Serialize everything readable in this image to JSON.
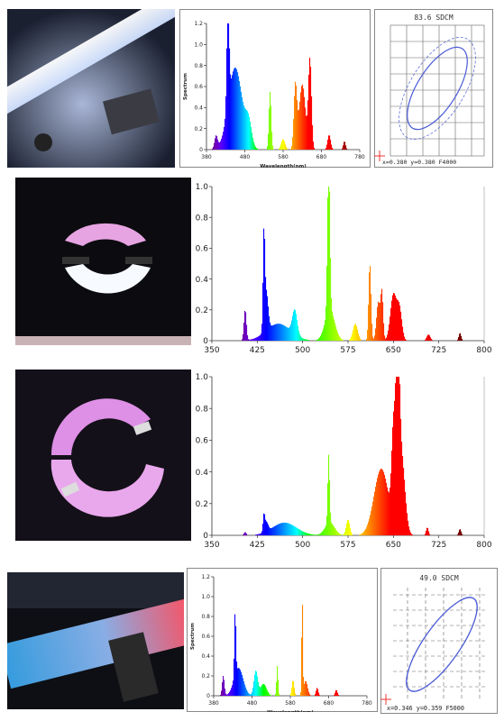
{
  "rows": [
    {
      "photo": {
        "subject": "linear tube lamp",
        "bg": "#1c2233"
      },
      "chart_data": {
        "type": "area",
        "ylabel": "Spectrum",
        "xlabel": "Wavelength(nm)",
        "xlim": [
          380,
          780
        ],
        "ylim": [
          0,
          1.2
        ],
        "x_ticks": [
          380,
          480,
          580,
          680,
          780
        ],
        "x_tick_labels": [
          "380",
          "480",
          "580",
          "680",
          "780"
        ],
        "y_ticks": [
          0,
          0.2,
          0.4,
          0.6,
          0.8,
          1.0,
          1.2
        ],
        "y_tick_labels": [
          "0",
          "0.2",
          "0.4",
          "0.6",
          "0.8",
          "1.0",
          "1.2"
        ],
        "peaks": [
          {
            "x": 405,
            "w": 4,
            "h": 0.12
          },
          {
            "x": 436,
            "w": 3,
            "h": 1.0
          },
          {
            "x": 455,
            "w": 18,
            "h": 0.78
          },
          {
            "x": 490,
            "w": 8,
            "h": 0.22
          },
          {
            "x": 546,
            "w": 3,
            "h": 0.55
          },
          {
            "x": 580,
            "w": 5,
            "h": 0.1
          },
          {
            "x": 612,
            "w": 4,
            "h": 0.6
          },
          {
            "x": 630,
            "w": 8,
            "h": 0.62
          },
          {
            "x": 650,
            "w": 4,
            "h": 0.85
          },
          {
            "x": 700,
            "w": 4,
            "h": 0.14
          },
          {
            "x": 740,
            "w": 3,
            "h": 0.08
          }
        ]
      },
      "cie": {
        "title": "83.6 SDCM",
        "coords": "x=0.380  y=0.380  F4000"
      }
    },
    {
      "photo": {
        "subject": "pink/white circular lamp",
        "bg": "#0d0d12"
      },
      "chart_data": {
        "type": "area",
        "xlim": [
          350,
          800
        ],
        "ylim": [
          0,
          1.0
        ],
        "x_ticks": [
          350,
          425,
          500,
          575,
          650,
          725,
          800
        ],
        "x_tick_labels": [
          "350",
          "425",
          "500",
          "575",
          "650",
          "725",
          "800"
        ],
        "y_ticks": [
          0,
          0.2,
          0.4,
          0.6,
          0.8,
          1.0
        ],
        "y_tick_labels": [
          "0",
          "0.2",
          "0.4",
          "0.6",
          "0.8",
          "1.0"
        ],
        "peaks": [
          {
            "x": 405,
            "w": 2,
            "h": 0.2
          },
          {
            "x": 436,
            "w": 1.5,
            "h": 0.6
          },
          {
            "x": 440,
            "w": 3,
            "h": 0.25
          },
          {
            "x": 460,
            "w": 20,
            "h": 0.11
          },
          {
            "x": 487,
            "w": 4,
            "h": 0.16
          },
          {
            "x": 543,
            "w": 2,
            "h": 1.0
          },
          {
            "x": 545,
            "w": 8,
            "h": 0.2
          },
          {
            "x": 587,
            "w": 4,
            "h": 0.11
          },
          {
            "x": 611,
            "w": 2,
            "h": 0.5
          },
          {
            "x": 625,
            "w": 3,
            "h": 0.25
          },
          {
            "x": 631,
            "w": 2,
            "h": 0.3
          },
          {
            "x": 650,
            "w": 5,
            "h": 0.3
          },
          {
            "x": 660,
            "w": 4,
            "h": 0.2
          },
          {
            "x": 708,
            "w": 3,
            "h": 0.04
          },
          {
            "x": 760,
            "w": 2,
            "h": 0.05
          }
        ]
      }
    },
    {
      "photo": {
        "subject": "magenta circular lamp",
        "bg": "#141019"
      },
      "chart_data": {
        "type": "area",
        "xlim": [
          350,
          800
        ],
        "ylim": [
          0,
          1.0
        ],
        "x_ticks": [
          350,
          425,
          500,
          575,
          650,
          725,
          800
        ],
        "x_tick_labels": [
          "350",
          "425",
          "500",
          "575",
          "650",
          "725",
          "800"
        ],
        "y_ticks": [
          0,
          0.2,
          0.4,
          0.6,
          0.8,
          1.0
        ],
        "y_tick_labels": [
          "0",
          "0.2",
          "0.4",
          "0.6",
          "0.8",
          "1.0"
        ],
        "peaks": [
          {
            "x": 405,
            "w": 2,
            "h": 0.02
          },
          {
            "x": 436,
            "w": 1.5,
            "h": 0.1
          },
          {
            "x": 440,
            "w": 3,
            "h": 0.06
          },
          {
            "x": 470,
            "w": 20,
            "h": 0.08
          },
          {
            "x": 543,
            "w": 1.5,
            "h": 0.43
          },
          {
            "x": 545,
            "w": 8,
            "h": 0.08
          },
          {
            "x": 575,
            "w": 3,
            "h": 0.1
          },
          {
            "x": 630,
            "w": 12,
            "h": 0.42
          },
          {
            "x": 650,
            "w": 3,
            "h": 0.55
          },
          {
            "x": 657,
            "w": 3,
            "h": 1.0
          },
          {
            "x": 663,
            "w": 6,
            "h": 0.5
          },
          {
            "x": 706,
            "w": 2,
            "h": 0.05
          },
          {
            "x": 760,
            "w": 2,
            "h": 0.04
          }
        ]
      }
    },
    {
      "photo": {
        "subject": "blue/red tube lamp",
        "bg": "#0e0f14"
      },
      "chart_data": {
        "type": "area",
        "ylabel": "Spectrum",
        "xlabel": "Wavelength(nm)",
        "xlim": [
          380,
          780
        ],
        "ylim": [
          0,
          1.2
        ],
        "x_ticks": [
          380,
          480,
          580,
          680,
          780
        ],
        "x_tick_labels": [
          "380",
          "480",
          "580",
          "680",
          "780"
        ],
        "y_ticks": [
          0,
          0.2,
          0.4,
          0.6,
          0.8,
          1.0,
          1.2
        ],
        "y_tick_labels": [
          "0",
          "0.2",
          "0.4",
          "0.6",
          "0.8",
          "1.0",
          "1.2"
        ],
        "peaks": [
          {
            "x": 405,
            "w": 3,
            "h": 0.2
          },
          {
            "x": 436,
            "w": 2,
            "h": 0.66
          },
          {
            "x": 445,
            "w": 12,
            "h": 0.28
          },
          {
            "x": 490,
            "w": 5,
            "h": 0.25
          },
          {
            "x": 510,
            "w": 8,
            "h": 0.12
          },
          {
            "x": 546,
            "w": 2,
            "h": 0.3
          },
          {
            "x": 587,
            "w": 3,
            "h": 0.16
          },
          {
            "x": 611,
            "w": 1.5,
            "h": 1.0
          },
          {
            "x": 620,
            "w": 5,
            "h": 0.15
          },
          {
            "x": 650,
            "w": 3,
            "h": 0.08
          },
          {
            "x": 700,
            "w": 3,
            "h": 0.06
          }
        ]
      },
      "cie": {
        "title": "49.0 SDCM",
        "coords": "x=0.346  y=0.359  F5000"
      }
    }
  ]
}
